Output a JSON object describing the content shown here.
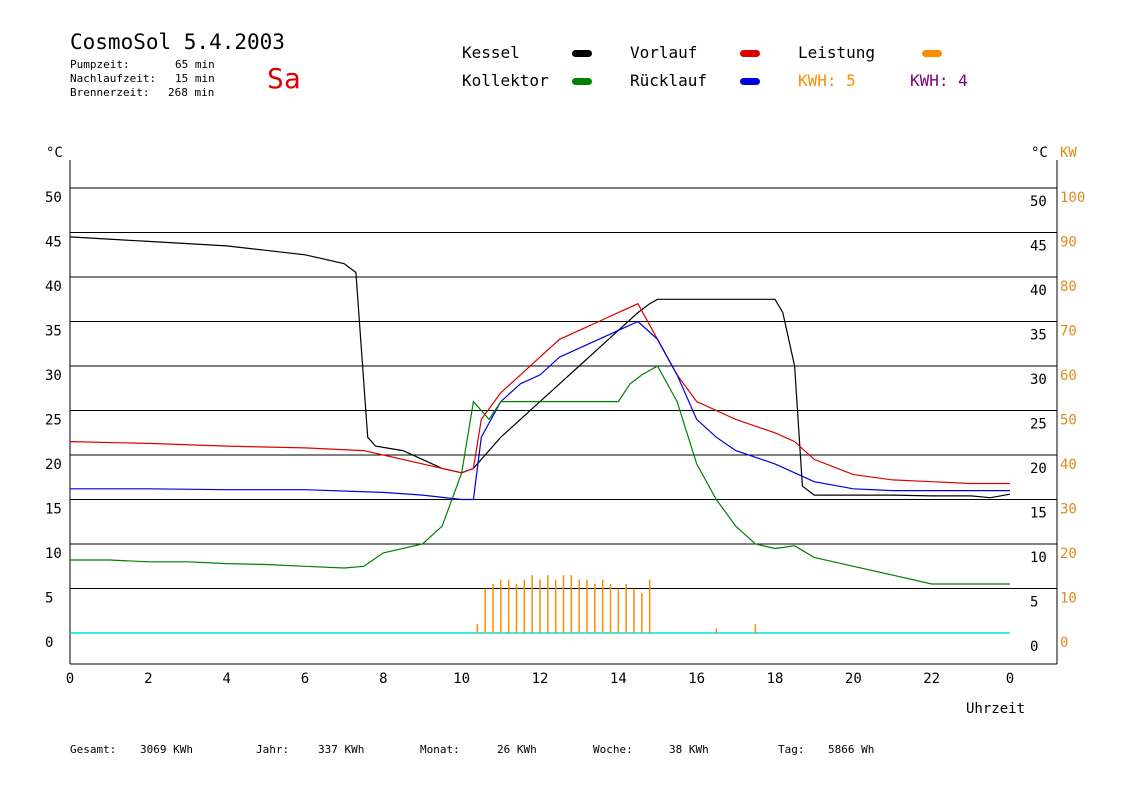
{
  "header": {
    "title": "CosmoSol 5.4.2003",
    "day": "Sa",
    "stats": [
      {
        "label": "Pumpzeit:",
        "value": "65 min"
      },
      {
        "label": "Nachlaufzeit:",
        "value": "15 min"
      },
      {
        "label": "Brennerzeit:",
        "value": "268 min"
      }
    ]
  },
  "legend": {
    "items": [
      {
        "label": "Kessel",
        "color": "#000000"
      },
      {
        "label": "Kollektor",
        "color": "#008000"
      },
      {
        "label": "Vorlauf",
        "color": "#dd0000"
      },
      {
        "label": "Rücklauf",
        "color": "#0000dd"
      },
      {
        "label": "Leistung",
        "color": "#ff8c00"
      }
    ],
    "kwh1": "KWH: 5",
    "kwh1_color": "#ff8c00",
    "kwh2": "KWH: 4",
    "kwh2_color": "#800080"
  },
  "axes": {
    "left_unit": "°C",
    "right_unit_c": "°C",
    "right_unit_kw": "KW",
    "xlabel": "Uhrzeit"
  },
  "footer": [
    {
      "label": "Gesamt:",
      "value": "3069 KWh"
    },
    {
      "label": "Jahr:",
      "value": "337 KWh"
    },
    {
      "label": "Monat:",
      "value": "26 KWh"
    },
    {
      "label": "Woche:",
      "value": "38 KWh"
    },
    {
      "label": "Tag:",
      "value": "5866 Wh"
    }
  ],
  "chart_data": {
    "type": "line",
    "x_ticks": [
      "0",
      "2",
      "4",
      "6",
      "8",
      "10",
      "12",
      "14",
      "16",
      "18",
      "20",
      "22",
      "0"
    ],
    "y_ticks": [
      0,
      5,
      10,
      15,
      20,
      25,
      30,
      35,
      40,
      45,
      50
    ],
    "y2_ticks_kw": [
      0,
      10,
      20,
      30,
      40,
      50,
      60,
      70,
      80,
      90,
      100
    ],
    "xlim": [
      0,
      24
    ],
    "ylim": [
      0,
      50
    ],
    "y2lim_kw": [
      0,
      100
    ],
    "grid": true,
    "series": [
      {
        "name": "Kessel",
        "color": "#000000",
        "x": [
          0,
          2,
          4,
          5,
          6,
          6.5,
          7,
          7.3,
          7.6,
          7.8,
          8.5,
          9,
          9.5,
          10,
          10.3,
          10.6,
          11,
          11.5,
          12,
          12.5,
          13,
          13.5,
          14,
          14.5,
          14.8,
          15,
          15.5,
          16,
          17,
          18,
          18.2,
          18.5,
          18.7,
          19,
          20,
          21,
          22,
          23,
          23.5,
          24
        ],
        "y": [
          44.5,
          44,
          43.5,
          43,
          42.5,
          42,
          41.5,
          40.5,
          22,
          21,
          20.5,
          19.5,
          18.5,
          18,
          18.5,
          20,
          22,
          24,
          26,
          28,
          30,
          32,
          34,
          36,
          37,
          37.5,
          37.5,
          37.5,
          37.5,
          37.5,
          36,
          30,
          16.5,
          15.5,
          15.5,
          15.5,
          15.4,
          15.4,
          15.2,
          15.6
        ]
      },
      {
        "name": "Vorlauf",
        "color": "#dd0000",
        "x": [
          0,
          2,
          4,
          6,
          7.5,
          8,
          9,
          10,
          10.3,
          10.5,
          11,
          11.5,
          12,
          12.5,
          13,
          13.5,
          14,
          14.5,
          15,
          15.5,
          16,
          16.5,
          17,
          18,
          18.5,
          19,
          20,
          21,
          22,
          23,
          24
        ],
        "y": [
          21.5,
          21.3,
          21,
          20.8,
          20.5,
          20,
          19,
          18,
          18.5,
          24,
          27,
          29,
          31,
          33,
          34,
          35,
          36,
          37,
          33,
          29,
          26,
          25,
          24,
          22.5,
          21.5,
          19.5,
          17.8,
          17.2,
          17,
          16.8,
          16.8
        ]
      },
      {
        "name": "Rücklauf",
        "color": "#0000dd",
        "x": [
          0,
          2,
          4,
          6,
          8,
          9,
          10,
          10.3,
          10.5,
          11,
          11.5,
          12,
          12.5,
          13,
          13.5,
          14,
          14.5,
          15,
          15.5,
          16,
          16.5,
          17,
          18,
          19,
          20,
          21,
          22,
          23,
          24
        ],
        "y": [
          16.2,
          16.2,
          16.1,
          16.1,
          15.8,
          15.5,
          15,
          15,
          22,
          26,
          28,
          29,
          31,
          32,
          33,
          34,
          35,
          33,
          29,
          24,
          22,
          20.5,
          19,
          17,
          16.2,
          16,
          16,
          16,
          16
        ]
      },
      {
        "name": "Kollektor",
        "color": "#008000",
        "x": [
          0,
          1,
          2,
          3,
          4,
          5,
          6,
          7,
          7.5,
          8,
          9,
          9.5,
          10,
          10.3,
          10.7,
          11,
          11.5,
          12,
          12.5,
          13,
          13.5,
          14,
          14.3,
          14.6,
          15,
          15.5,
          16,
          16.5,
          17,
          17.5,
          18,
          18.5,
          19,
          20,
          21,
          22,
          23,
          24
        ],
        "y": [
          8.2,
          8.2,
          8,
          8,
          7.8,
          7.7,
          7.5,
          7.3,
          7.5,
          9,
          10,
          12,
          18,
          26,
          24,
          26,
          26,
          26,
          26,
          26,
          26,
          26,
          28,
          29,
          30,
          26,
          19,
          15,
          12,
          10,
          9.5,
          9.8,
          8.5,
          7.5,
          6.5,
          5.5,
          5.5,
          5.5
        ]
      },
      {
        "name": "Leistung",
        "color": "#ff8c00",
        "x": [
          10.4,
          10.6,
          10.8,
          11,
          11.2,
          11.4,
          11.6,
          11.8,
          12,
          12.2,
          12.4,
          12.6,
          12.8,
          13,
          13.2,
          13.4,
          13.6,
          13.8,
          14,
          14.2,
          14.4,
          14.6,
          14.8,
          16.5,
          17.5
        ],
        "y_kw": [
          2,
          10,
          11,
          12,
          12,
          11,
          12,
          13,
          12,
          13,
          12,
          13,
          13,
          12,
          12,
          11,
          12,
          11,
          10,
          11,
          10,
          9,
          12,
          1,
          2
        ]
      }
    ]
  }
}
